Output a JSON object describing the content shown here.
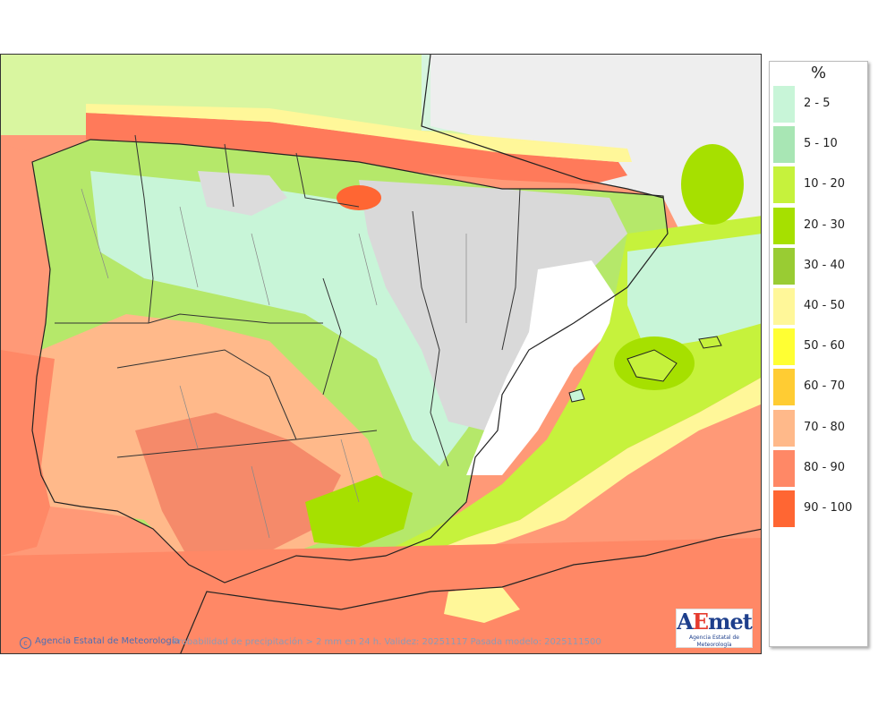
{
  "credit": "Agencia Estatal de Meteorología",
  "caption": "Probabilidad de precipitación > 2 mm en 24 h. Validez: 20251117 Pasada modelo: 2025111500",
  "logo": {
    "word_a": "A",
    "word_e": "E",
    "word_met": "met",
    "sub": "Agencia Estatal de Meteorología"
  },
  "legend": {
    "unit": "%",
    "items": [
      {
        "label": "2 - 5",
        "color": "#c8f5d8"
      },
      {
        "label": "5 - 10",
        "color": "#a8e6b4"
      },
      {
        "label": "10 - 20",
        "color": "#c6f23c"
      },
      {
        "label": "20 - 30",
        "color": "#a6e000"
      },
      {
        "label": "30 - 40",
        "color": "#99cc33"
      },
      {
        "label": "40 - 50",
        "color": "#fff799"
      },
      {
        "label": "50 - 60",
        "color": "#ffff33"
      },
      {
        "label": "60 - 70",
        "color": "#ffcc33"
      },
      {
        "label": "70 - 80",
        "color": "#ffb98a"
      },
      {
        "label": "80 - 90",
        "color": "#ff8866"
      },
      {
        "label": "90 - 100",
        "color": "#ff6633"
      }
    ]
  }
}
